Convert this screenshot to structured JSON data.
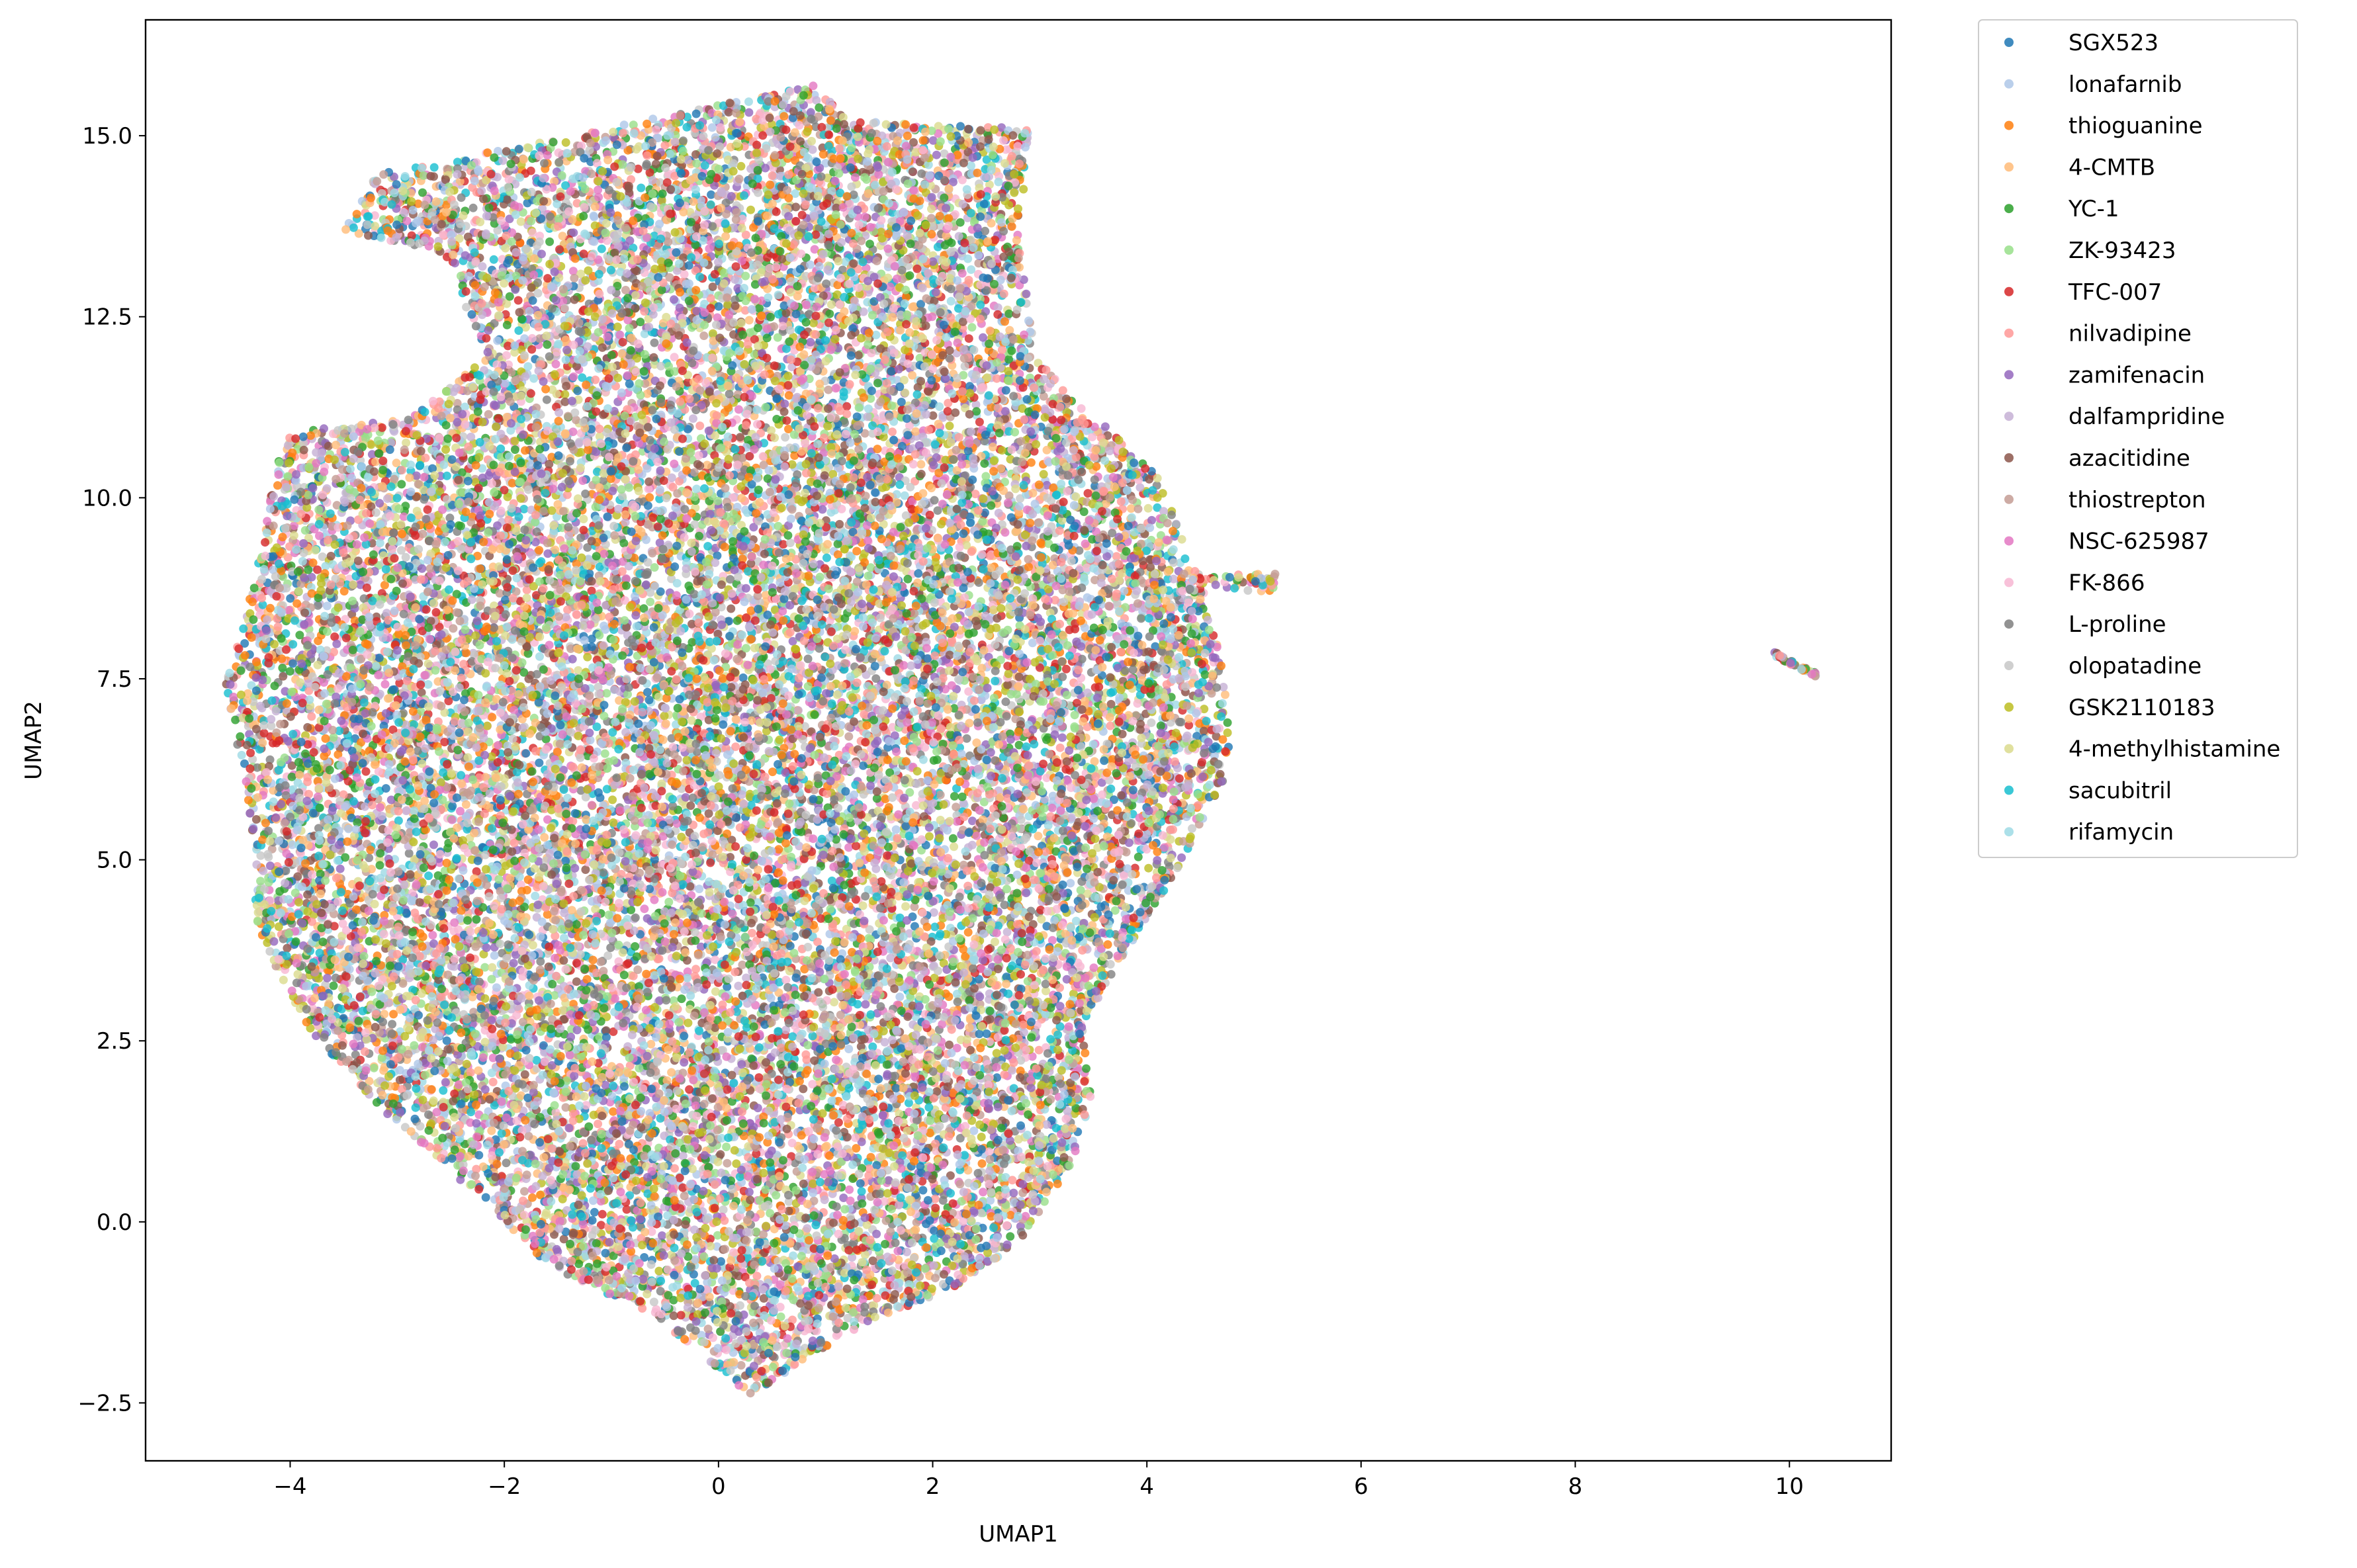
{
  "chart_data": {
    "type": "scatter",
    "title": "",
    "xlabel": "UMAP1",
    "ylabel": "UMAP2",
    "xlim": [
      -5.35,
      10.95
    ],
    "ylim": [
      -3.3,
      16.6
    ],
    "xticks": [
      -4,
      -2,
      0,
      2,
      4,
      6,
      8,
      10
    ],
    "xtick_labels": [
      "−4",
      "−2",
      "0",
      "2",
      "4",
      "6",
      "8",
      "10"
    ],
    "yticks": [
      -2.5,
      0.0,
      2.5,
      5.0,
      7.5,
      10.0,
      12.5,
      15.0
    ],
    "ytick_labels": [
      "−2.5",
      "0.0",
      "2.5",
      "5.0",
      "7.5",
      "10.0",
      "12.5",
      "15.0"
    ],
    "grid": false,
    "legend_position": "outside-upper-right",
    "point_alpha": 0.8,
    "main_cluster": {
      "outline": [
        [
          0.3,
          -2.4
        ],
        [
          0.8,
          -1.9
        ],
        [
          1.5,
          -1.3
        ],
        [
          2.1,
          -1.0
        ],
        [
          2.8,
          -0.3
        ],
        [
          3.3,
          0.8
        ],
        [
          3.5,
          1.8
        ],
        [
          3.4,
          2.7
        ],
        [
          3.7,
          3.5
        ],
        [
          4.1,
          4.4
        ],
        [
          4.6,
          5.6
        ],
        [
          4.8,
          6.5
        ],
        [
          4.7,
          7.7
        ],
        [
          4.5,
          8.9
        ],
        [
          4.1,
          10.3
        ],
        [
          3.6,
          11.0
        ],
        [
          3.0,
          11.9
        ],
        [
          2.8,
          13.5
        ],
        [
          2.9,
          15.1
        ],
        [
          1.2,
          15.2
        ],
        [
          0.9,
          15.7
        ],
        [
          -0.4,
          15.3
        ],
        [
          -2.4,
          14.7
        ],
        [
          -3.2,
          14.5
        ],
        [
          -3.5,
          13.7
        ],
        [
          -2.5,
          13.3
        ],
        [
          -2.2,
          11.9
        ],
        [
          -2.9,
          11.1
        ],
        [
          -4.0,
          10.9
        ],
        [
          -4.1,
          10.6
        ],
        [
          -4.3,
          9.1
        ],
        [
          -4.6,
          7.4
        ],
        [
          -4.4,
          5.8
        ],
        [
          -4.3,
          4.0
        ],
        [
          -3.8,
          2.6
        ],
        [
          -3.1,
          1.5
        ],
        [
          -2.2,
          0.3
        ],
        [
          -1.6,
          -0.6
        ],
        [
          -0.6,
          -1.3
        ],
        [
          -0.1,
          -1.9
        ],
        [
          0.1,
          -2.2
        ]
      ],
      "approx_point_count": 26000
    },
    "small_cluster": {
      "x_range": [
        9.85,
        10.25
      ],
      "y_range": [
        7.55,
        7.85
      ],
      "approx_point_count": 40
    },
    "spur": {
      "x_range": [
        4.3,
        5.2
      ],
      "y_range": [
        8.7,
        8.95
      ]
    },
    "series": [
      {
        "name": "SGX523",
        "color": "#1f77b4"
      },
      {
        "name": "lonafarnib",
        "color": "#aec7e8"
      },
      {
        "name": "thioguanine",
        "color": "#ff7f0e"
      },
      {
        "name": "4-CMTB",
        "color": "#ffbb78"
      },
      {
        "name": "YC-1",
        "color": "#2ca02c"
      },
      {
        "name": "ZK-93423",
        "color": "#98df8a"
      },
      {
        "name": "TFC-007",
        "color": "#d62728"
      },
      {
        "name": "nilvadipine",
        "color": "#ff9896"
      },
      {
        "name": "zamifenacin",
        "color": "#9467bd"
      },
      {
        "name": "dalfampridine",
        "color": "#c5b0d5"
      },
      {
        "name": "azacitidine",
        "color": "#8c564b"
      },
      {
        "name": "thiostrepton",
        "color": "#c49c94"
      },
      {
        "name": "NSC-625987",
        "color": "#e377c2"
      },
      {
        "name": "FK-866",
        "color": "#f7b6d2"
      },
      {
        "name": "L-proline",
        "color": "#7f7f7f"
      },
      {
        "name": "olopatadine",
        "color": "#c7c7c7"
      },
      {
        "name": "GSK2110183",
        "color": "#bcbd22"
      },
      {
        "name": "4-methylhistamine",
        "color": "#dbdb8d"
      },
      {
        "name": "sacubitril",
        "color": "#17becf"
      },
      {
        "name": "rifamycin",
        "color": "#9edae5"
      }
    ]
  }
}
